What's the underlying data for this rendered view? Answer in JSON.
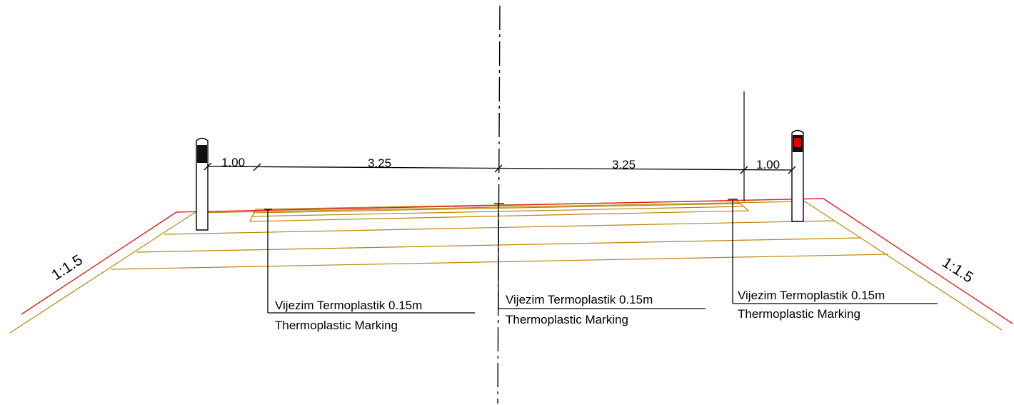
{
  "dimensions": {
    "left_shoulder": "1.00",
    "left_lane": "3.25",
    "right_lane": "3.25",
    "right_shoulder": "1.00"
  },
  "slopes": {
    "left": "1:1.5",
    "right": "1:1.5"
  },
  "markings": [
    {
      "line1": "Vijezim Termoplastik 0.15m",
      "line2": "Thermoplastic Marking"
    },
    {
      "line1": "Vijezim Termoplastik 0.15m",
      "line2": "Thermoplastic Marking"
    },
    {
      "line1": "Vijezim Termoplastik 0.15m",
      "line2": "Thermoplastic Marking"
    }
  ],
  "colors": {
    "outline": "#000000",
    "surface_edge": "#e02020",
    "layers": "#b8860b",
    "post_reflector_right": "#e00000",
    "post_reflector_left": "#111111"
  }
}
